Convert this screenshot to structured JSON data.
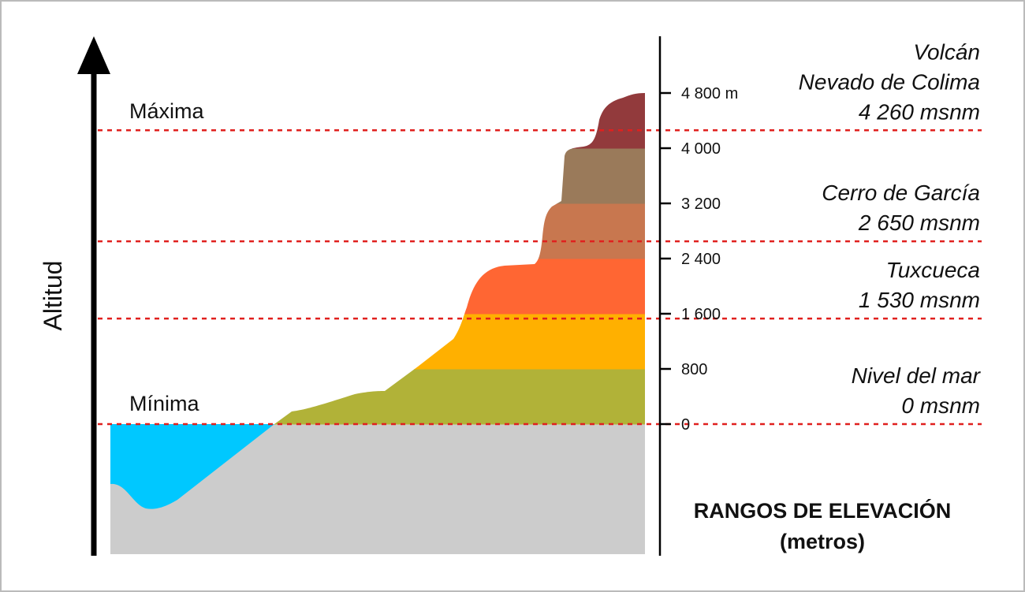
{
  "axis_label": "Altitud",
  "max_label": "Máxima",
  "min_label": "Mínima",
  "scale": {
    "ticks": [
      {
        "value": 0,
        "label": "0"
      },
      {
        "value": 800,
        "label": "800"
      },
      {
        "value": 1600,
        "label": "1 600"
      },
      {
        "value": 2400,
        "label": "2 400"
      },
      {
        "value": 3200,
        "label": "3 200"
      },
      {
        "value": 4000,
        "label": "4 000"
      },
      {
        "value": 4800,
        "label": "4 800 m"
      }
    ]
  },
  "bands": [
    {
      "from": 0,
      "to": 800,
      "color": "#b1b238"
    },
    {
      "from": 800,
      "to": 1600,
      "color": "#ffb000"
    },
    {
      "from": 1600,
      "to": 2400,
      "color": "#ff6633"
    },
    {
      "from": 2400,
      "to": 3200,
      "color": "#c8774f"
    },
    {
      "from": 3200,
      "to": 4000,
      "color": "#9a7a5a"
    },
    {
      "from": 4000,
      "to": 4800,
      "color": "#923a3c"
    }
  ],
  "colors": {
    "water": "#00c8ff",
    "ground": "#cccccc",
    "reference_line": "#e0201e"
  },
  "references": [
    {
      "value": 4260,
      "lines": [
        "Volcán",
        "Nevado de Colima",
        "4 260 msnm"
      ]
    },
    {
      "value": 2650,
      "lines": [
        "Cerro de García",
        "2 650 msnm"
      ]
    },
    {
      "value": 1530,
      "lines": [
        "Tuxcueca",
        "1 530 msnm"
      ]
    },
    {
      "value": 0,
      "lines": [
        "Nivel del mar",
        "0 msnm"
      ]
    }
  ],
  "legend_title": [
    "RANGOS DE ELEVACIÓN",
    "(metros)"
  ]
}
